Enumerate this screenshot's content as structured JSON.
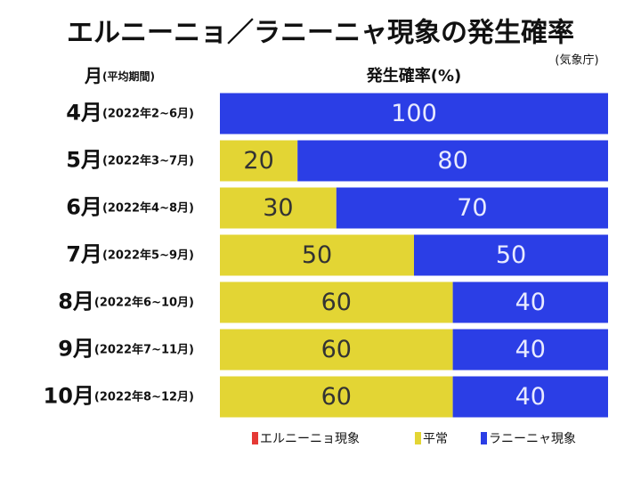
{
  "chart_data": {
    "type": "stacked_bar_horizontal",
    "title": "エルニーニョ／ラニーニャ現象の発生確率",
    "source": "(気象庁)",
    "y_label": "月",
    "y_label_note": "(平均期間)",
    "x_label": "発生確率(%)",
    "categories": [
      "4月",
      "5月",
      "6月",
      "7月",
      "8月",
      "9月",
      "10月"
    ],
    "category_periods": [
      "(2022年2~6月)",
      "(2022年3~7月)",
      "(2022年4~8月)",
      "(2022年5~9月)",
      "(2022年6~10月)",
      "(2022年7~11月)",
      "(2022年8~12月)"
    ],
    "xlim": [
      0,
      100
    ],
    "series": [
      {
        "name": "エルニーニョ現象",
        "color": "#e53935",
        "label_color": "#ffffff",
        "values": [
          0,
          0,
          0,
          0,
          0,
          0,
          0
        ]
      },
      {
        "name": "平常",
        "color": "#e3d534",
        "label_color": "#333333",
        "values": [
          0,
          20,
          30,
          50,
          60,
          60,
          60
        ]
      },
      {
        "name": "ラニーニャ現象",
        "color": "#2b3ee6",
        "label_color": "#e8eaff",
        "values": [
          100,
          80,
          70,
          50,
          40,
          40,
          40
        ]
      }
    ]
  }
}
